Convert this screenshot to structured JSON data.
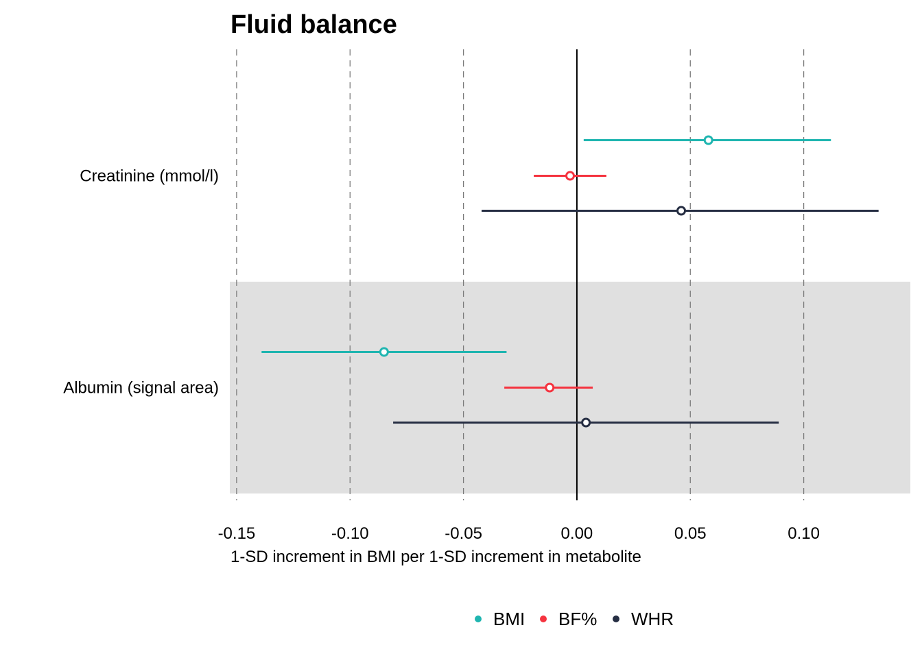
{
  "chart_data": {
    "type": "forest",
    "title": "Fluid balance",
    "xlabel": "1-SD increment in BMI per 1-SD increment in metabolite",
    "ylabel": "",
    "xlim": [
      -0.153,
      0.147
    ],
    "xticks": [
      -0.15,
      -0.1,
      -0.05,
      0.0,
      0.05,
      0.1
    ],
    "xtick_labels": [
      "-0.15",
      "-0.10",
      "-0.05",
      "0.00",
      "0.05",
      "0.10"
    ],
    "reference_line": 0,
    "grid": "vertical dashed",
    "legend_position": "bottom",
    "categories": [
      "Creatinine (mmol/l)",
      "Albumin (signal area)"
    ],
    "shaded_categories": [
      "Albumin (signal area)"
    ],
    "series": [
      {
        "name": "BMI",
        "color": "#1fb5b0",
        "estimates": [
          0.058,
          -0.085
        ],
        "lower": [
          0.003,
          -0.139
        ],
        "upper": [
          0.112,
          -0.031
        ]
      },
      {
        "name": "BF%",
        "color": "#f5333f",
        "estimates": [
          -0.003,
          -0.012
        ],
        "lower": [
          -0.019,
          -0.032
        ],
        "upper": [
          0.013,
          0.007
        ]
      },
      {
        "name": "WHR",
        "color": "#262e43",
        "estimates": [
          0.046,
          0.004
        ],
        "lower": [
          -0.042,
          -0.081
        ],
        "upper": [
          0.133,
          0.089
        ]
      }
    ]
  }
}
